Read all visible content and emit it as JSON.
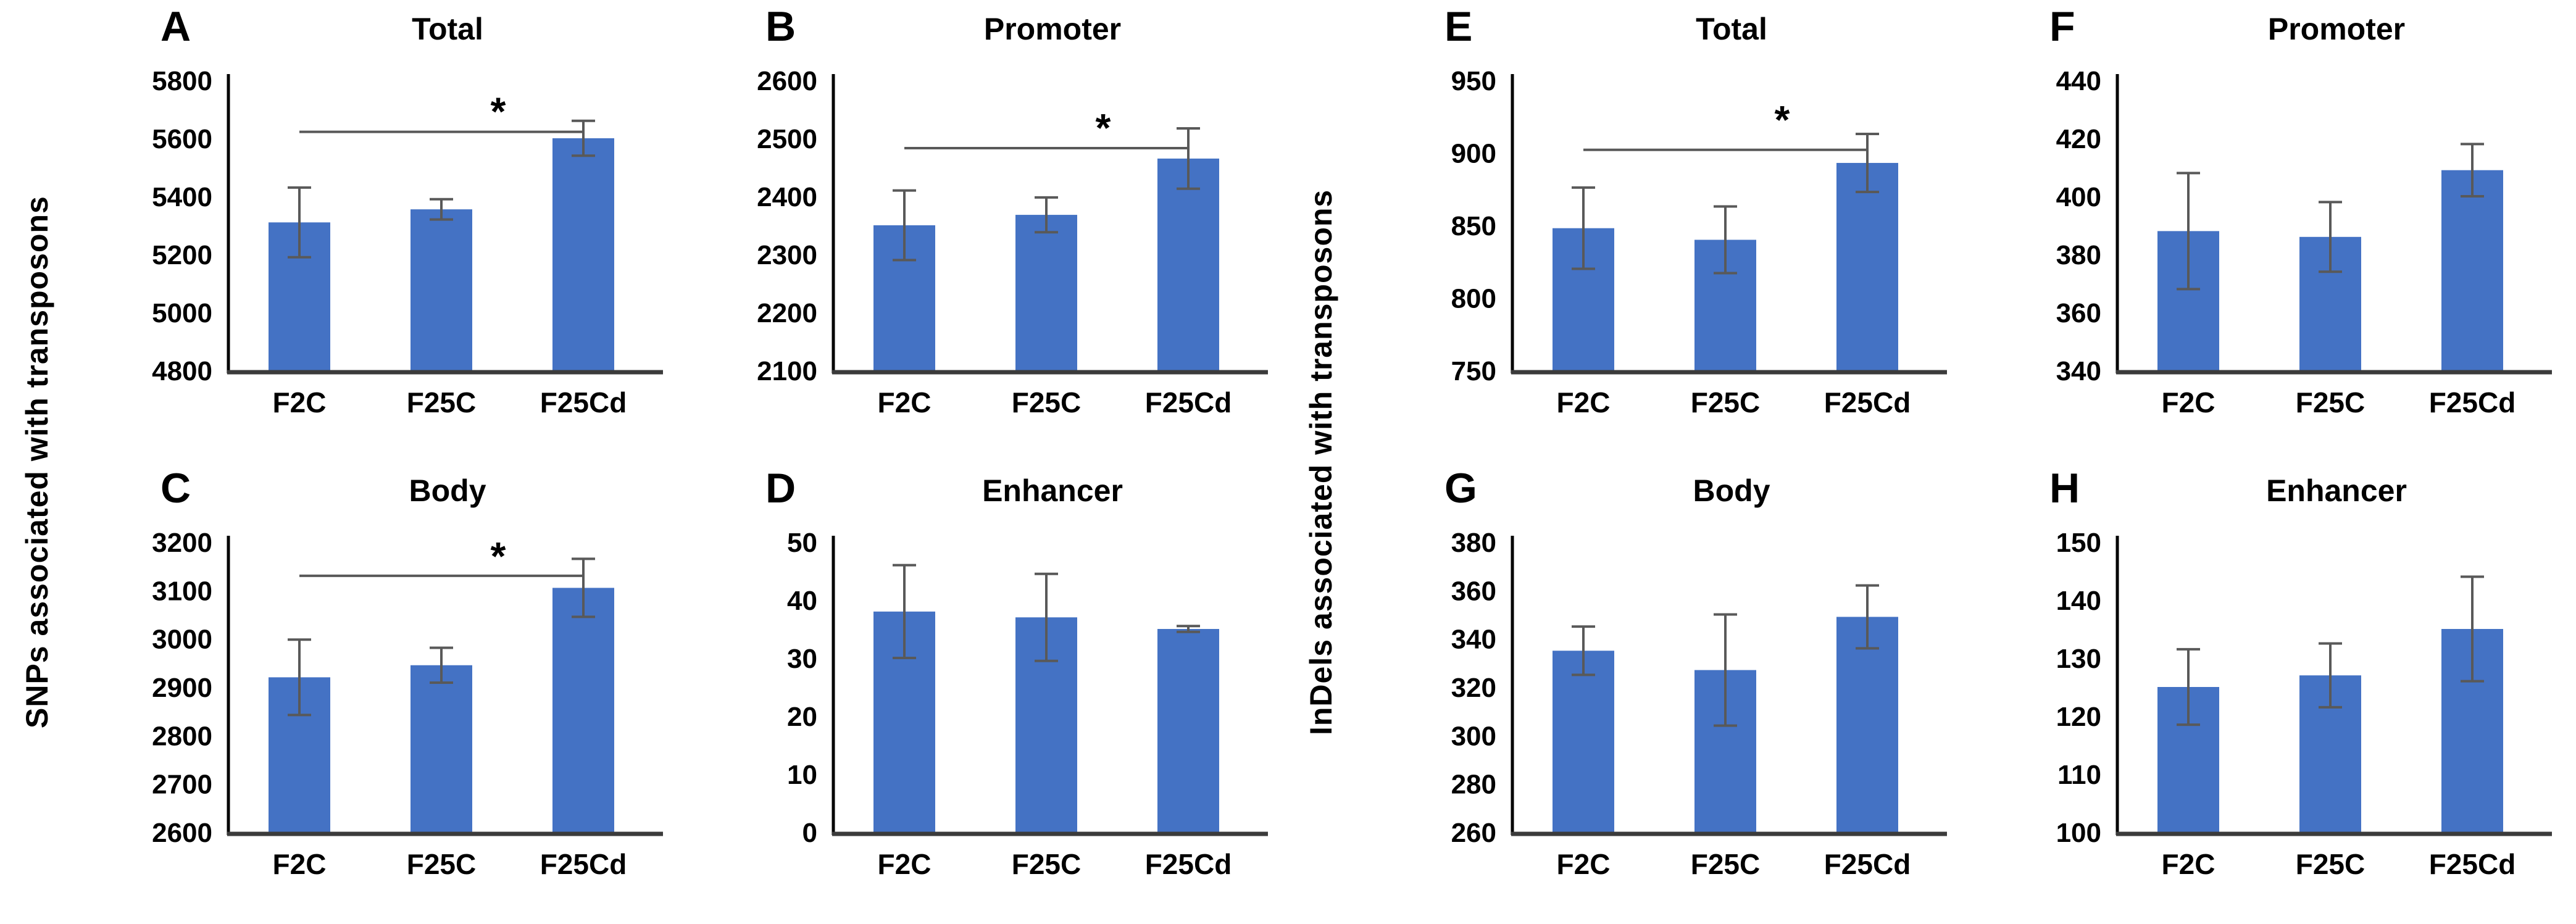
{
  "labels": {
    "snps_axis": "SNPs associated with transposons",
    "indels_axis": "InDels associated with transposons"
  },
  "colors": {
    "bar": "#4472C4",
    "error_bar": "#595959",
    "axis": "#000000",
    "baseline": "#3b3b3b",
    "sig_line": "#595959",
    "text": "#000000"
  },
  "chart_data": [
    {
      "panel": "A",
      "type": "bar",
      "title": "Total",
      "group": "SNPs associated with transposons",
      "categories": [
        "F2C",
        "F25C",
        "F25Cd"
      ],
      "values": [
        5310,
        5355,
        5600
      ],
      "errors": [
        120,
        35,
        60
      ],
      "ylim": [
        4800,
        5800
      ],
      "yticks": [
        5800,
        5600,
        5400,
        5200,
        5000,
        4800
      ],
      "sig": {
        "label": "*",
        "from": 0,
        "to": 2,
        "line_y": 5622,
        "label_y": 5688
      }
    },
    {
      "panel": "B",
      "type": "bar",
      "title": "Promoter",
      "group": "SNPs associated with transposons",
      "categories": [
        "F2C",
        "F25C",
        "F25Cd"
      ],
      "values": [
        2350,
        2368,
        2465
      ],
      "errors": [
        60,
        30,
        52
      ],
      "ylim": [
        2100,
        2600
      ],
      "yticks": [
        2600,
        2500,
        2400,
        2300,
        2200,
        2100
      ],
      "sig": {
        "label": "*",
        "from": 0,
        "to": 2,
        "line_y": 2483,
        "label_y": 2516
      }
    },
    {
      "panel": "C",
      "type": "bar",
      "title": "Body",
      "group": "SNPs associated with transposons",
      "categories": [
        "F2C",
        "F25C",
        "F25Cd"
      ],
      "values": [
        2920,
        2945,
        3105
      ],
      "errors": [
        78,
        36,
        60
      ],
      "ylim": [
        2600,
        3200
      ],
      "yticks": [
        3200,
        3100,
        3000,
        2900,
        2800,
        2700,
        2600
      ],
      "sig": {
        "label": "*",
        "from": 0,
        "to": 2,
        "line_y": 3130,
        "label_y": 3168
      }
    },
    {
      "panel": "D",
      "type": "bar",
      "title": "Enhancer",
      "group": "SNPs associated with transposons",
      "categories": [
        "F2C",
        "F25C",
        "F25Cd"
      ],
      "values": [
        38,
        37,
        35
      ],
      "errors": [
        8,
        7.5,
        0.5
      ],
      "ylim": [
        0,
        50
      ],
      "yticks": [
        50,
        40,
        30,
        20,
        10,
        0
      ],
      "sig": null
    },
    {
      "panel": "E",
      "type": "bar",
      "title": "Total",
      "group": "InDels associated with transposons",
      "categories": [
        "F2C",
        "F25C",
        "F25Cd"
      ],
      "values": [
        848,
        840,
        893
      ],
      "errors": [
        28,
        23,
        20
      ],
      "ylim": [
        750,
        950
      ],
      "yticks": [
        950,
        900,
        850,
        800,
        750
      ],
      "sig": {
        "label": "*",
        "from": 0,
        "to": 2,
        "line_y": 902,
        "label_y": 922
      }
    },
    {
      "panel": "F",
      "type": "bar",
      "title": "Promoter",
      "group": "InDels associated with transposons",
      "categories": [
        "F2C",
        "F25C",
        "F25Cd"
      ],
      "values": [
        388,
        386,
        409
      ],
      "errors": [
        20,
        12,
        9
      ],
      "ylim": [
        340,
        440
      ],
      "yticks": [
        440,
        420,
        400,
        380,
        360,
        340
      ],
      "sig": null
    },
    {
      "panel": "G",
      "type": "bar",
      "title": "Body",
      "group": "InDels associated with transposons",
      "categories": [
        "F2C",
        "F25C",
        "F25Cd"
      ],
      "values": [
        335,
        327,
        349
      ],
      "errors": [
        10,
        23,
        13
      ],
      "ylim": [
        260,
        380
      ],
      "yticks": [
        380,
        360,
        340,
        320,
        300,
        280,
        260
      ],
      "sig": null
    },
    {
      "panel": "H",
      "type": "bar",
      "title": "Enhancer",
      "group": "InDels associated with transposons",
      "categories": [
        "F2C",
        "F25C",
        "F25Cd"
      ],
      "values": [
        125,
        127,
        135
      ],
      "errors": [
        6.5,
        5.5,
        9
      ],
      "ylim": [
        100,
        150
      ],
      "yticks": [
        150,
        140,
        130,
        120,
        110,
        100
      ],
      "sig": null
    }
  ]
}
